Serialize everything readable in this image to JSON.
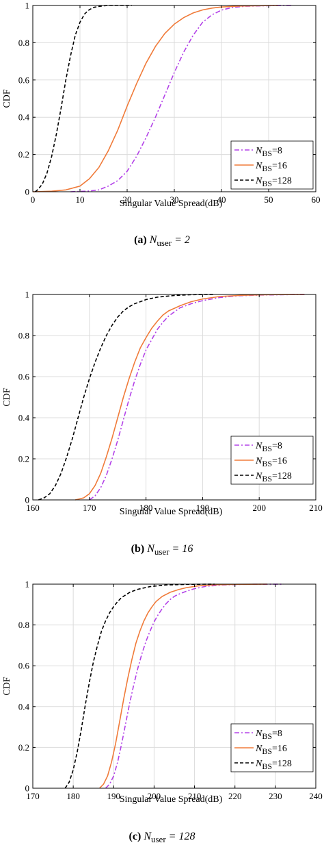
{
  "chart_data": [
    {
      "type": "line",
      "caption": {
        "letter": "(a)",
        "var": "N",
        "sub": "user",
        "rest": " = 2"
      },
      "xlabel": "Singular Value Spread(dB)",
      "ylabel": "CDF",
      "xlim": [
        0,
        60
      ],
      "ylim": [
        0,
        1
      ],
      "xticks": [
        "0",
        "10",
        "20",
        "30",
        "40",
        "50",
        "60"
      ],
      "yticks": [
        "0",
        "0.2",
        "0.4",
        "0.6",
        "0.8",
        "1"
      ],
      "grid": true,
      "legend_position": "bottom-right",
      "series": [
        {
          "name": {
            "var": "N",
            "sub": "BS",
            "rest": "=8"
          },
          "color": "#b342e8",
          "dash": "dashdot",
          "x": [
            8,
            12,
            14,
            16,
            18,
            20,
            22,
            24,
            26,
            28,
            30,
            32,
            34,
            36,
            38,
            40,
            42,
            45,
            50,
            55
          ],
          "y": [
            0,
            0.004,
            0.01,
            0.03,
            0.06,
            0.11,
            0.19,
            0.29,
            0.4,
            0.52,
            0.64,
            0.75,
            0.84,
            0.91,
            0.95,
            0.975,
            0.988,
            0.996,
            0.999,
            1
          ]
        },
        {
          "name": {
            "var": "N",
            "sub": "BS",
            "rest": "=16"
          },
          "color": "#f07b3a",
          "dash": "solid",
          "x": [
            0,
            4,
            7,
            10,
            12,
            14,
            16,
            18,
            20,
            22,
            24,
            26,
            28,
            30,
            32,
            34,
            36,
            38,
            40,
            44,
            48,
            52
          ],
          "y": [
            0,
            0.003,
            0.01,
            0.03,
            0.07,
            0.13,
            0.22,
            0.33,
            0.46,
            0.58,
            0.69,
            0.78,
            0.85,
            0.9,
            0.935,
            0.96,
            0.976,
            0.986,
            0.992,
            0.997,
            0.999,
            1
          ]
        },
        {
          "name": {
            "var": "N",
            "sub": "BS",
            "rest": "=128"
          },
          "color": "#000000",
          "dash": "dashed",
          "x": [
            0.5,
            1,
            2,
            3,
            4,
            5,
            6,
            7,
            8,
            9,
            10,
            11,
            12,
            13,
            14,
            15,
            16,
            18,
            21
          ],
          "y": [
            0,
            0.01,
            0.04,
            0.1,
            0.19,
            0.31,
            0.45,
            0.6,
            0.73,
            0.84,
            0.91,
            0.955,
            0.978,
            0.99,
            0.995,
            0.998,
            1,
            1,
            1
          ]
        }
      ]
    },
    {
      "type": "line",
      "caption": {
        "letter": "(b)",
        "var": "N",
        "sub": "user",
        "rest": " = 16"
      },
      "xlabel": "Singular Value Spread(dB)",
      "ylabel": "CDF",
      "xlim": [
        160,
        210
      ],
      "ylim": [
        0,
        1
      ],
      "xticks": [
        "160",
        "170",
        "180",
        "190",
        "200",
        "210"
      ],
      "yticks": [
        "0",
        "0.2",
        "0.4",
        "0.6",
        "0.8",
        "1"
      ],
      "grid": true,
      "legend_position": "bottom-right",
      "series": [
        {
          "name": {
            "var": "N",
            "sub": "BS",
            "rest": "=8"
          },
          "color": "#b342e8",
          "dash": "dashdot",
          "x": [
            170,
            171,
            172,
            173,
            174,
            175,
            176,
            177,
            178,
            179,
            180,
            181,
            182,
            183,
            184,
            185,
            186,
            188,
            190,
            193,
            196,
            200,
            205,
            208
          ],
          "y": [
            0,
            0.02,
            0.06,
            0.12,
            0.2,
            0.29,
            0.39,
            0.49,
            0.58,
            0.66,
            0.73,
            0.78,
            0.83,
            0.865,
            0.895,
            0.915,
            0.935,
            0.955,
            0.97,
            0.985,
            0.993,
            0.997,
            0.999,
            1
          ]
        },
        {
          "name": {
            "var": "N",
            "sub": "BS",
            "rest": "=16"
          },
          "color": "#f07b3a",
          "dash": "solid",
          "x": [
            167.5,
            169,
            170,
            171,
            172,
            173,
            174,
            175,
            176,
            177,
            178,
            179,
            180,
            181,
            182,
            183,
            184,
            186,
            188,
            190,
            193,
            197,
            202,
            208
          ],
          "y": [
            0,
            0.01,
            0.03,
            0.07,
            0.13,
            0.21,
            0.3,
            0.4,
            0.5,
            0.59,
            0.67,
            0.74,
            0.79,
            0.835,
            0.87,
            0.9,
            0.92,
            0.945,
            0.965,
            0.978,
            0.99,
            0.996,
            0.999,
            1
          ]
        },
        {
          "name": {
            "var": "N",
            "sub": "BS",
            "rest": "=128"
          },
          "color": "#000000",
          "dash": "dashed",
          "x": [
            161,
            162,
            163,
            164,
            165,
            166,
            167,
            168,
            169,
            170,
            171,
            172,
            173,
            174,
            175,
            176,
            177,
            178,
            180,
            182,
            185,
            188,
            192
          ],
          "y": [
            0,
            0.01,
            0.03,
            0.07,
            0.13,
            0.21,
            0.3,
            0.4,
            0.5,
            0.59,
            0.67,
            0.74,
            0.8,
            0.85,
            0.89,
            0.92,
            0.94,
            0.955,
            0.975,
            0.987,
            0.995,
            0.999,
            1
          ]
        }
      ]
    },
    {
      "type": "line",
      "caption": {
        "letter": "(c)",
        "var": "N",
        "sub": "user",
        "rest": " = 128"
      },
      "xlabel": "Singular Value Spread(dB)",
      "ylabel": "CDF",
      "xlim": [
        170,
        240
      ],
      "ylim": [
        0,
        1
      ],
      "xticks": [
        "170",
        "180",
        "190",
        "200",
        "210",
        "220",
        "230",
        "240"
      ],
      "yticks": [
        "0",
        "0.2",
        "0.4",
        "0.6",
        "0.8",
        "1"
      ],
      "grid": true,
      "legend_position": "bottom-right",
      "series": [
        {
          "name": {
            "var": "N",
            "sub": "BS",
            "rest": "=8"
          },
          "color": "#b342e8",
          "dash": "dashdot",
          "x": [
            188,
            189,
            190,
            191,
            192,
            193,
            194,
            195,
            196,
            197,
            198,
            199,
            200,
            201,
            202,
            203,
            204,
            205,
            206,
            208,
            210,
            213,
            217,
            222,
            232
          ],
          "y": [
            0,
            0.02,
            0.06,
            0.13,
            0.22,
            0.32,
            0.42,
            0.51,
            0.59,
            0.66,
            0.72,
            0.77,
            0.815,
            0.85,
            0.88,
            0.905,
            0.925,
            0.94,
            0.95,
            0.965,
            0.978,
            0.99,
            0.996,
            0.999,
            1
          ]
        },
        {
          "name": {
            "var": "N",
            "sub": "BS",
            "rest": "=16"
          },
          "color": "#f07b3a",
          "dash": "solid",
          "x": [
            186.5,
            187.5,
            188.5,
            189.5,
            190.5,
            191.5,
            192.5,
            193.5,
            194.5,
            195.5,
            196.5,
            197.5,
            198.5,
            199.5,
            200.5,
            202,
            204,
            206,
            208,
            211,
            215,
            220,
            228
          ],
          "y": [
            0,
            0.02,
            0.06,
            0.13,
            0.22,
            0.33,
            0.44,
            0.54,
            0.63,
            0.71,
            0.77,
            0.82,
            0.86,
            0.89,
            0.915,
            0.94,
            0.96,
            0.973,
            0.983,
            0.992,
            0.997,
            0.999,
            1
          ]
        },
        {
          "name": {
            "var": "N",
            "sub": "BS",
            "rest": "=128"
          },
          "color": "#000000",
          "dash": "dashed",
          "x": [
            178,
            179,
            180,
            181,
            182,
            183,
            184,
            185,
            186,
            187,
            188,
            189,
            190,
            191,
            192,
            194,
            196,
            199,
            203,
            208,
            215
          ],
          "y": [
            0,
            0.03,
            0.09,
            0.18,
            0.29,
            0.41,
            0.52,
            0.62,
            0.7,
            0.77,
            0.82,
            0.86,
            0.89,
            0.915,
            0.935,
            0.96,
            0.975,
            0.988,
            0.996,
            0.999,
            1
          ]
        }
      ]
    }
  ]
}
